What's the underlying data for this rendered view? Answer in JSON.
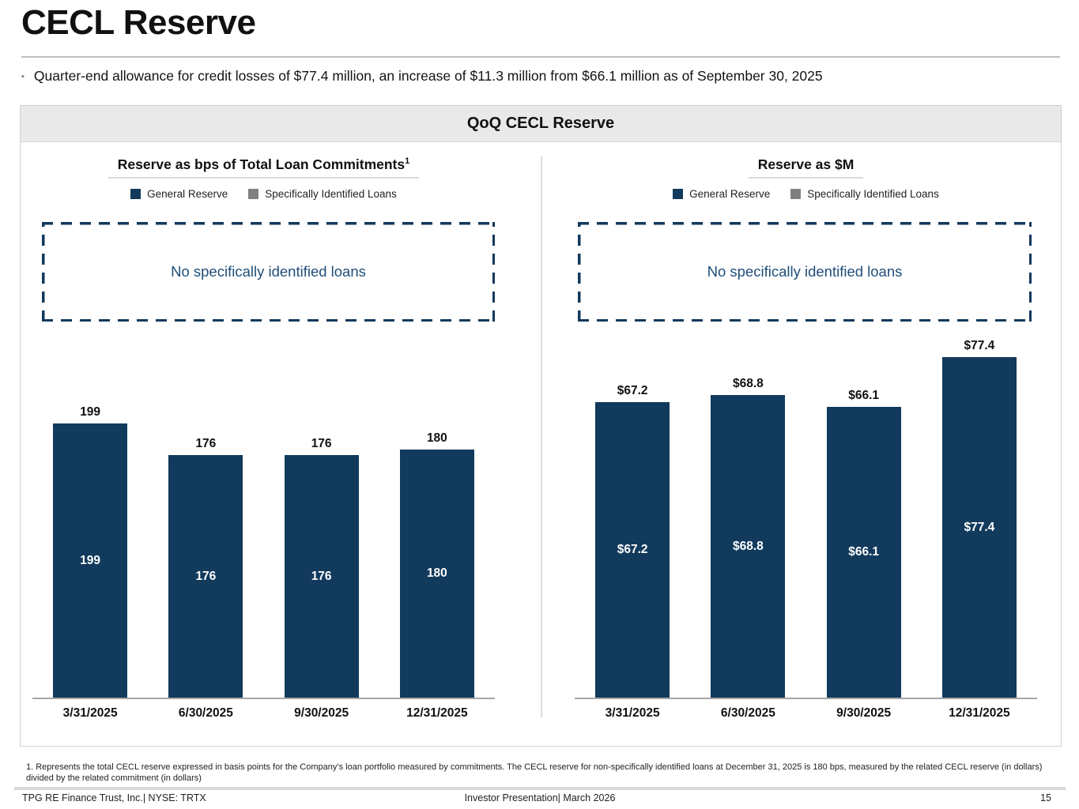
{
  "slide": {
    "title": "CECL Reserve",
    "bullet_glyph": "▪",
    "bullet": "Quarter-end allowance for credit losses of $77.4 million, an increase of $11.3 million from $66.1 million as of September 30, 2025",
    "panel_title": "QoQ CECL Reserve"
  },
  "legend": {
    "general": "General Reserve",
    "specific": "Specifically Identified Loans"
  },
  "colors": {
    "bar_navy": "#113a5c",
    "legend_gray": "#808080",
    "dashed_border_navy": "#12395c",
    "annotation_blue": "#1f4e79",
    "header_bg": "#e9e9e9"
  },
  "chart_data": [
    {
      "type": "bar",
      "title": "Reserve as bps of Total Loan Commitments",
      "title_superscript": "1",
      "categories": [
        "3/31/2025",
        "6/30/2025",
        "9/30/2025",
        "12/31/2025"
      ],
      "series": [
        {
          "name": "General Reserve",
          "values": [
            199,
            176,
            176,
            180
          ]
        },
        {
          "name": "Specifically Identified Loans",
          "values": [
            0,
            0,
            0,
            0
          ]
        }
      ],
      "value_labels": [
        "199",
        "176",
        "176",
        "180"
      ],
      "annotation": "No specifically identified loans",
      "ylabel": "bps",
      "ylim": [
        0,
        260
      ],
      "grid": false,
      "legend_position": "top"
    },
    {
      "type": "bar",
      "title": "Reserve as $M",
      "title_superscript": "",
      "categories": [
        "3/31/2025",
        "6/30/2025",
        "9/30/2025",
        "12/31/2025"
      ],
      "series": [
        {
          "name": "General Reserve",
          "values": [
            67.2,
            68.8,
            66.1,
            77.4
          ]
        },
        {
          "name": "Specifically Identified Loans",
          "values": [
            0,
            0,
            0,
            0
          ]
        }
      ],
      "value_labels": [
        "$67.2",
        "$68.8",
        "$66.1",
        "$77.4"
      ],
      "annotation": "No specifically identified loans",
      "ylabel": "$M",
      "ylim": [
        0,
        82
      ],
      "grid": false,
      "legend_position": "top"
    }
  ],
  "footnote": "1. Represents the total CECL reserve expressed in basis points for the Company’s  loan portfolio measured by commitments.  The CECL reserve for non-specifically identified loans at December 31, 2025 is 180 bps, measured by the related CECL reserve (in dollars) divided by the related commitment (in dollars)",
  "footer": {
    "left": "TPG RE Finance Trust, Inc.| NYSE: TRTX",
    "center": "Investor Presentation| March 2026",
    "page_number": "15"
  }
}
